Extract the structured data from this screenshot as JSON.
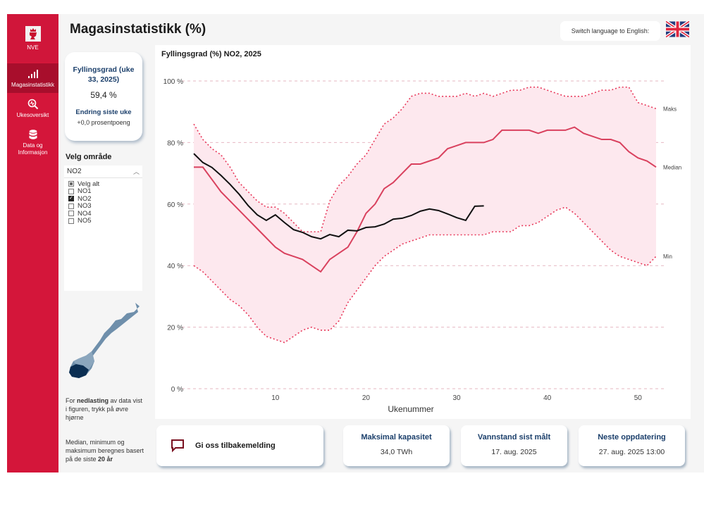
{
  "sidebar": {
    "logo_text": "NVE",
    "items": [
      {
        "label": "Magasinstatistikk",
        "icon": "bar-signal-icon",
        "active": true
      },
      {
        "label": "Ukesoversikt",
        "icon": "magnifier-chart-icon",
        "active": false
      },
      {
        "label": "Data og Informasjon",
        "icon": "database-icon",
        "active": false
      }
    ]
  },
  "header": {
    "title": "Magasinstatistikk (%)",
    "language_button": "Switch language to English:",
    "flag_icon": "uk-flag-icon"
  },
  "kpi": {
    "title": "Fyllingsgrad (uke 33, 2025)",
    "value": "59,4 %",
    "change_title": "Endring siste uke",
    "change_value": "+0,0 prosentpoeng"
  },
  "area_selector": {
    "label": "Velg område",
    "selected": "NO2",
    "options": [
      {
        "label": "Velg alt",
        "state": "partial"
      },
      {
        "label": "NO1",
        "state": "unchecked"
      },
      {
        "label": "NO2",
        "state": "checked"
      },
      {
        "label": "NO3",
        "state": "unchecked"
      },
      {
        "label": "NO4",
        "state": "unchecked"
      },
      {
        "label": "NO5",
        "state": "unchecked"
      }
    ]
  },
  "notes": {
    "download_pre": "For ",
    "download_bold": "nedlasting",
    "download_post": " av data vist i figuren, trykk på øvre hjørne",
    "basis_pre": "Median, minimum og maksimum beregnes basert på de siste ",
    "basis_bold": "20 år"
  },
  "cards": {
    "feedback": "Gi oss tilbakemelding",
    "capacity_title": "Maksimal kapasitet",
    "capacity_value": "34,0 TWh",
    "measured_title": "Vannstand sist målt",
    "measured_value": "17. aug. 2025",
    "next_title": "Neste oppdatering",
    "next_value": "27. aug. 2025 13:00"
  },
  "colors": {
    "brand_red": "#d4163a",
    "median": "#d9415e",
    "band_fill": "#fde8ee",
    "current": "#111111",
    "heading_blue": "#1b3f6b"
  },
  "chart_data": {
    "type": "line",
    "title": "Fyllingsgrad (%) NO2, 2025",
    "xlabel": "Ukenummer",
    "ylabel": "",
    "xlim": [
      1,
      52
    ],
    "ylim": [
      0,
      100
    ],
    "x_ticks": [
      10,
      20,
      30,
      40,
      50
    ],
    "y_ticks": [
      0,
      20,
      40,
      60,
      80,
      100
    ],
    "y_tick_labels": [
      "0 %",
      "20 %",
      "40 %",
      "60 %",
      "80 %",
      "100 %"
    ],
    "grid": "horizontal-dashed",
    "end_labels": {
      "max": "Maks",
      "median": "Median",
      "min": "Min"
    },
    "x": [
      1,
      2,
      3,
      4,
      5,
      6,
      7,
      8,
      9,
      10,
      11,
      12,
      13,
      14,
      15,
      16,
      17,
      18,
      19,
      20,
      21,
      22,
      23,
      24,
      25,
      26,
      27,
      28,
      29,
      30,
      31,
      32,
      33,
      34,
      35,
      36,
      37,
      38,
      39,
      40,
      41,
      42,
      43,
      44,
      45,
      46,
      47,
      48,
      49,
      50,
      51,
      52
    ],
    "series": [
      {
        "name": "Maks",
        "style": "dotted",
        "values": [
          86,
          81,
          78,
          76,
          72,
          67,
          64,
          61,
          59,
          59,
          57,
          54,
          51,
          51,
          51,
          61,
          66,
          69,
          73,
          76,
          81,
          86,
          88,
          91,
          95,
          96,
          96,
          95,
          95,
          95,
          96,
          95,
          96,
          95,
          96,
          97,
          97,
          98,
          98,
          97,
          96,
          95,
          95,
          95,
          96,
          97,
          97,
          98,
          98,
          93,
          92,
          91
        ]
      },
      {
        "name": "Median",
        "style": "solid",
        "values": [
          72,
          72,
          68,
          64,
          61,
          58,
          55,
          52,
          49,
          46,
          44,
          43,
          42,
          40,
          38,
          42,
          44,
          46,
          51,
          57,
          60,
          65,
          67,
          70,
          73,
          73,
          74,
          75,
          78,
          79,
          80,
          80,
          80,
          81,
          84,
          84,
          84,
          84,
          83,
          84,
          84,
          84,
          85,
          83,
          82,
          81,
          81,
          80,
          77,
          75,
          74,
          72
        ]
      },
      {
        "name": "Min",
        "style": "dotted",
        "values": [
          40,
          38,
          35,
          32,
          29,
          27,
          24,
          20,
          17,
          16,
          15,
          17,
          19,
          20,
          19,
          19,
          22,
          28,
          32,
          36,
          40,
          43,
          45,
          47,
          48,
          49,
          50,
          50,
          50,
          50,
          50,
          50,
          50,
          51,
          51,
          51,
          53,
          53,
          54,
          56,
          58,
          59,
          57,
          54,
          51,
          48,
          45,
          43,
          42,
          41,
          40,
          43
        ]
      },
      {
        "name": "2025",
        "style": "solid-black",
        "values": [
          76.4,
          73.5,
          71.9,
          69.3,
          66.4,
          63.2,
          59.5,
          56.5,
          54.7,
          56.5,
          54.0,
          51.7,
          50.8,
          49.4,
          48.7,
          50.1,
          49.4,
          51.5,
          51.3,
          52.4,
          52.6,
          53.5,
          55.1,
          55.4,
          56.3,
          57.7,
          58.4,
          57.9,
          56.8,
          55.6,
          54.7,
          59.3,
          59.4
        ]
      }
    ]
  }
}
